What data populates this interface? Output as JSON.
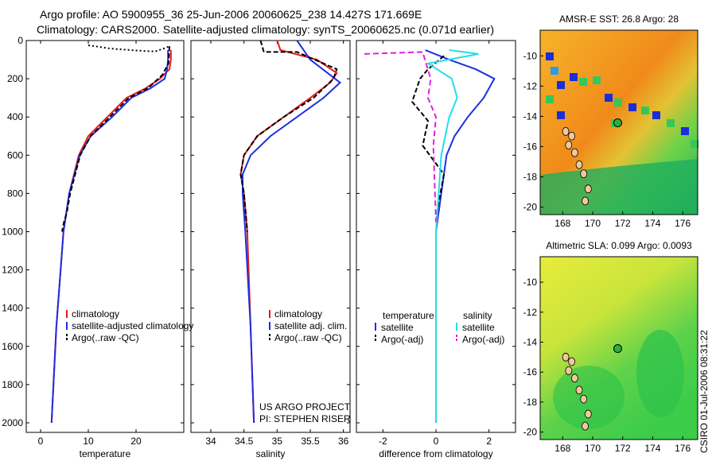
{
  "header": {
    "title_line1": "Argo profile: AO 5900955_36 25-Jun-2006 20060625_238 14.427S 171.669E",
    "title_line2": "Climatology: CARS2000. Satellite-adjusted climatology: synTS_20060625.nc (0.071d earlier)"
  },
  "credit": "CSIRO 01-Jul-2006 08:31:22",
  "colors": {
    "climatology": "#e41a1c",
    "satellite": "#1f2fe0",
    "argo": "#000000",
    "cyan": "#22e0e8",
    "magenta": "#e020e0"
  },
  "chart_data": [
    {
      "type": "line",
      "xlabel": "temperature",
      "xlim": [
        -3,
        30
      ],
      "xticks": [
        0,
        10,
        20
      ],
      "ylim": [
        2050,
        0
      ],
      "yticks": [
        0,
        200,
        400,
        600,
        800,
        1000,
        1200,
        1400,
        1600,
        1800,
        2000
      ],
      "legend": [
        "climatology",
        "satellite-adjusted climatology",
        "Argo(..raw -QC)"
      ],
      "series": [
        {
          "name": "climatology",
          "x": [
            27.3,
            27.3,
            27.0,
            25.0,
            22.0,
            18.0,
            14.0,
            10.0,
            8.0,
            6.0,
            4.8,
            3.3,
            2.7,
            2.3
          ],
          "y": [
            50,
            100,
            150,
            200,
            250,
            300,
            400,
            500,
            600,
            800,
            1000,
            1500,
            1800,
            2000
          ]
        },
        {
          "name": "satellite-adjusted climatology",
          "x": [
            26.7,
            26.7,
            26.5,
            26.0,
            23.0,
            19.0,
            15.0,
            10.5,
            8.2,
            6.0,
            4.8,
            3.3,
            2.7,
            2.3
          ],
          "y": [
            50,
            100,
            150,
            200,
            250,
            300,
            400,
            500,
            600,
            800,
            1000,
            1500,
            1800,
            2000
          ]
        },
        {
          "name": "Argo(..raw -QC)",
          "x": [
            27.0,
            26.8,
            25.5,
            22.5,
            18.5,
            14.5,
            10.5,
            8.3,
            6.2,
            5.5,
            4.9,
            4.5
          ],
          "y": [
            30,
            120,
            180,
            250,
            300,
            400,
            500,
            600,
            800,
            900,
            950,
            1000
          ]
        },
        {
          "name": "",
          "x": [
            10,
            12,
            14,
            16,
            18,
            20,
            22,
            24,
            26,
            27
          ],
          "y": [
            25,
            32,
            40,
            45,
            48,
            52,
            55,
            57,
            40,
            30
          ]
        }
      ]
    },
    {
      "type": "line",
      "xlabel": "salinity",
      "xlim": [
        33.7,
        36.1
      ],
      "xticks": [
        34,
        34.5,
        35,
        35.5,
        36
      ],
      "ylim": [
        2050,
        0
      ],
      "legend": [
        "climatology",
        "satellite adj. clim.",
        "Argo(..raw -QC)"
      ],
      "annotation": [
        "US ARGO PROJECT",
        "PI: STEPHEN RISER"
      ],
      "series": [
        {
          "name": "climatology",
          "x": [
            35.0,
            35.05,
            35.6,
            35.9,
            35.8,
            35.5,
            35.1,
            34.7,
            34.5,
            34.45,
            34.5,
            34.55,
            34.6,
            34.65
          ],
          "y": [
            0,
            50,
            100,
            170,
            220,
            300,
            400,
            500,
            600,
            700,
            800,
            1000,
            1500,
            2000
          ]
        },
        {
          "name": "satellite adj. clim.",
          "x": [
            35.3,
            35.4,
            35.5,
            35.8,
            35.95,
            35.7,
            35.3,
            34.9,
            34.6,
            34.48,
            34.48,
            34.52,
            34.6,
            34.65
          ],
          "y": [
            0,
            50,
            100,
            180,
            220,
            300,
            400,
            500,
            600,
            700,
            800,
            1000,
            1500,
            2000
          ]
        },
        {
          "name": "Argo(..raw -QC)",
          "x": [
            34.75,
            34.8,
            35.3,
            35.9,
            35.85,
            35.55,
            35.1,
            34.7,
            34.5,
            34.45,
            34.5,
            34.55
          ],
          "y": [
            0,
            60,
            60,
            150,
            200,
            300,
            400,
            500,
            600,
            700,
            800,
            1000
          ]
        }
      ]
    },
    {
      "type": "line",
      "xlabel": "difference from climatology",
      "xlim": [
        -3,
        3
      ],
      "xticks": [
        -2,
        0,
        2
      ],
      "ylim": [
        2050,
        0
      ],
      "legend_temperature": [
        "temperature",
        "satellite",
        "Argo(-adj)"
      ],
      "legend_salinity": [
        "salinity",
        "satellite",
        "Argo(-adj)"
      ],
      "series": [
        {
          "name": "temperature satellite",
          "x": [
            -0.4,
            0.5,
            1.5,
            2.2,
            1.8,
            1.2,
            0.7,
            0.4,
            0.2,
            0.0,
            0.0
          ],
          "y": [
            50,
            100,
            150,
            200,
            300,
            400,
            500,
            600,
            800,
            1000,
            2000
          ]
        },
        {
          "name": "temperature Argo(-adj)",
          "x": [
            0.3,
            -0.3,
            -0.6,
            -0.9,
            -0.3,
            -0.5,
            0.3,
            0.1,
            0.0
          ],
          "y": [
            80,
            150,
            200,
            320,
            420,
            550,
            700,
            850,
            950
          ]
        },
        {
          "name": "salinity satellite",
          "x": [
            0.5,
            1.6,
            -0.3,
            0.6,
            0.8,
            0.5,
            0.2,
            0.0,
            0.0
          ],
          "y": [
            50,
            70,
            120,
            200,
            300,
            400,
            600,
            1000,
            2000
          ]
        },
        {
          "name": "salinity Argo(-adj)",
          "x": [
            -2.7,
            -0.5,
            -0.2,
            -0.3,
            0.0,
            -0.1,
            0.0
          ],
          "y": [
            70,
            60,
            200,
            300,
            400,
            550,
            950
          ]
        }
      ]
    }
  ],
  "maps": [
    {
      "title": "AMSR-E SST: 26.8 Argo: 28",
      "xticks": [
        168,
        170,
        172,
        174,
        176
      ],
      "yticks": [
        -10,
        -12,
        -14,
        -16,
        -18,
        -20
      ],
      "xlim": [
        166.5,
        177
      ],
      "ylim": [
        -20.5,
        -8.3
      ],
      "float_lon": 171.669,
      "float_lat": -14.427
    },
    {
      "title": "Altimetric SLA: 0.099 Argo: 0.0093",
      "xticks": [
        168,
        170,
        172,
        174,
        176
      ],
      "yticks": [
        -10,
        -12,
        -14,
        -16,
        -18,
        -20
      ],
      "xlim": [
        166.5,
        177
      ],
      "ylim": [
        -20.5,
        -8.3
      ],
      "float_lon": 171.669,
      "float_lat": -14.427
    }
  ]
}
